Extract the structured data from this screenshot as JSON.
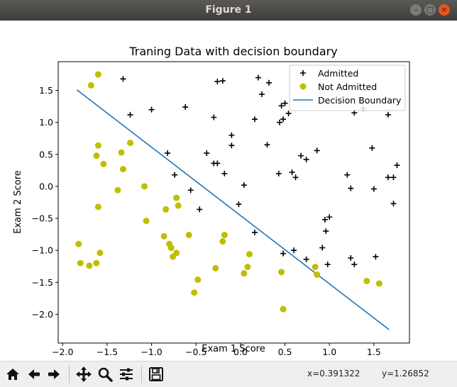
{
  "window": {
    "title": "Figure 1"
  },
  "toolbar": {
    "buttons": [
      "home-icon",
      "back-arrow-icon",
      "forward-arrow-icon",
      "pan-icon",
      "zoom-icon",
      "subplots-icon",
      "save-icon"
    ],
    "x_readout": "x=0.391322",
    "y_readout": "y=1.26852"
  },
  "colors": {
    "admitted": "#000000",
    "not_admitted": "#bfbf00",
    "boundary": "#1f77b4"
  },
  "chart_data": {
    "type": "scatter",
    "title": "Traning Data with decision boundary",
    "xlabel": "Exam 1 Score",
    "ylabel": "Exam 2 Score",
    "xlim": [
      -2.05,
      1.9
    ],
    "ylim": [
      -2.45,
      1.95
    ],
    "xticks": [
      -2.0,
      -1.5,
      -1.0,
      -0.5,
      0.0,
      0.5,
      1.0,
      1.5
    ],
    "xtick_labels": [
      "−2.0",
      "−1.5",
      "−1.0",
      "−0.5",
      "0.0",
      "0.5",
      "1.0",
      "1.5"
    ],
    "yticks": [
      1.5,
      1.0,
      0.5,
      0.0,
      -0.5,
      -1.0,
      -1.5,
      -2.0
    ],
    "ytick_labels": [
      "1.5",
      "1.0",
      "0.5",
      "0.0",
      "−0.5",
      "−1.0",
      "−1.5",
      "−2.0"
    ],
    "legend": {
      "position": "upper-right",
      "entries": [
        "Admitted",
        "Not Admitted",
        "Decision Boundary"
      ]
    },
    "series": [
      {
        "name": "Admitted",
        "marker": "plus",
        "points": [
          [
            -1.32,
            1.68
          ],
          [
            -1.24,
            1.12
          ],
          [
            -1.0,
            1.2
          ],
          [
            -0.82,
            0.52
          ],
          [
            -0.74,
            0.18
          ],
          [
            -0.62,
            1.24
          ],
          [
            -0.56,
            -0.06
          ],
          [
            -0.46,
            -0.36
          ],
          [
            -0.38,
            0.52
          ],
          [
            -0.3,
            0.36
          ],
          [
            -0.3,
            1.08
          ],
          [
            -0.26,
            0.36
          ],
          [
            -0.26,
            1.64
          ],
          [
            -0.2,
            1.65
          ],
          [
            -0.18,
            0.2
          ],
          [
            -0.1,
            0.64
          ],
          [
            -0.1,
            0.8
          ],
          [
            -0.02,
            -0.28
          ],
          [
            0.04,
            0.02
          ],
          [
            0.16,
            1.05
          ],
          [
            0.2,
            1.7
          ],
          [
            0.24,
            1.44
          ],
          [
            0.3,
            0.65
          ],
          [
            0.32,
            1.62
          ],
          [
            0.43,
            0.2
          ],
          [
            0.44,
            1.0
          ],
          [
            0.46,
            1.26
          ],
          [
            0.48,
            1.05
          ],
          [
            0.5,
            1.3
          ],
          [
            0.54,
            1.14
          ],
          [
            0.58,
            0.22
          ],
          [
            0.62,
            0.14
          ],
          [
            0.6,
            -1.0
          ],
          [
            0.68,
            0.48
          ],
          [
            0.74,
            0.42
          ],
          [
            0.74,
            -1.14
          ],
          [
            0.86,
            0.56
          ],
          [
            0.92,
            -0.96
          ],
          [
            0.95,
            -0.52
          ],
          [
            0.98,
            -1.22
          ],
          [
            1.0,
            -0.48
          ],
          [
            1.2,
            0.18
          ],
          [
            1.24,
            -0.03
          ],
          [
            1.24,
            -1.12
          ],
          [
            1.28,
            -1.22
          ],
          [
            1.28,
            1.15
          ],
          [
            1.48,
            0.6
          ],
          [
            1.5,
            -0.04
          ],
          [
            1.52,
            -1.1
          ],
          [
            1.66,
            1.12
          ],
          [
            1.66,
            0.14
          ],
          [
            1.72,
            0.14
          ],
          [
            1.72,
            -0.27
          ],
          [
            1.76,
            0.33
          ],
          [
            0.16,
            -0.72
          ],
          [
            0.96,
            -0.7
          ],
          [
            1.38,
            1.22
          ],
          [
            0.48,
            -1.05
          ]
        ]
      },
      {
        "name": "Not Admitted",
        "marker": "circle",
        "points": [
          [
            -1.68,
            1.58
          ],
          [
            -1.6,
            1.75
          ],
          [
            -1.82,
            -0.9
          ],
          [
            -1.8,
            -1.2
          ],
          [
            -1.7,
            -1.24
          ],
          [
            -1.62,
            -1.2
          ],
          [
            -1.58,
            -1.04
          ],
          [
            -1.6,
            -0.32
          ],
          [
            -1.62,
            0.48
          ],
          [
            -1.6,
            0.64
          ],
          [
            -1.54,
            0.35
          ],
          [
            -1.38,
            -0.06
          ],
          [
            -1.34,
            0.53
          ],
          [
            -1.32,
            0.27
          ],
          [
            -1.24,
            0.68
          ],
          [
            -1.08,
            0.0
          ],
          [
            -1.06,
            -0.54
          ],
          [
            -0.86,
            -0.78
          ],
          [
            -0.84,
            -0.36
          ],
          [
            -0.8,
            -0.9
          ],
          [
            -0.78,
            -0.96
          ],
          [
            -0.76,
            -1.1
          ],
          [
            -0.72,
            -1.04
          ],
          [
            -0.72,
            -0.18
          ],
          [
            -0.7,
            -0.3
          ],
          [
            -0.58,
            -0.76
          ],
          [
            -0.52,
            -1.66
          ],
          [
            -0.48,
            -1.46
          ],
          [
            -0.28,
            -1.28
          ],
          [
            -0.2,
            -0.86
          ],
          [
            -0.18,
            -0.76
          ],
          [
            0.04,
            -1.36
          ],
          [
            0.08,
            -1.26
          ],
          [
            0.1,
            -1.06
          ],
          [
            0.46,
            -1.34
          ],
          [
            0.48,
            -1.92
          ],
          [
            0.84,
            -1.26
          ],
          [
            0.86,
            -1.38
          ],
          [
            1.42,
            -1.48
          ],
          [
            1.56,
            -1.52
          ]
        ]
      },
      {
        "name": "Decision Boundary",
        "line": [
          [
            -1.84,
            1.51
          ],
          [
            1.67,
            -2.24
          ]
        ]
      }
    ]
  }
}
